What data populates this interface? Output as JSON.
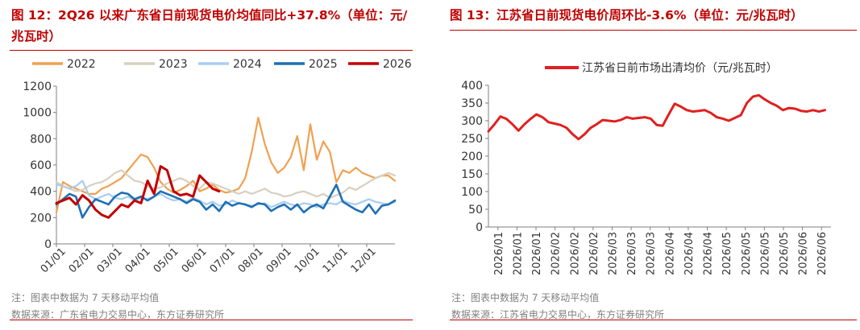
{
  "left": {
    "figure_title": "图 12：2Q26 以来广东省日前现货电价均值同比+37.8%（单位：元/兆瓦时）",
    "note": "注：图表中数据为 7 天移动平均值",
    "source": "数据来源：广东省电力交易中心，东方证券研究所"
  },
  "right": {
    "figure_title": "图 13：江苏省日前现货电价周环比-3.6%（单位：元/兆瓦时）",
    "note": "注：图表中数据为 7 天移动平均值",
    "source": "数据来源：江苏省电力交易中心，东方证券研究所"
  },
  "colors": {
    "title": "#c00000",
    "axis": "#7f7f7f"
  },
  "chart_data": [
    {
      "type": "line",
      "ylim": [
        0,
        1200
      ],
      "yticks": [
        0,
        200,
        400,
        600,
        800,
        1000,
        1200
      ],
      "x_tick_labels": [
        "01/01",
        "02/01",
        "03/01",
        "04/01",
        "05/01",
        "06/01",
        "07/01",
        "08/01",
        "09/01",
        "10/01",
        "11/01",
        "12/01"
      ],
      "legend_position": "top",
      "grid": false,
      "series": [
        {
          "name": "2022",
          "color": "#f0a050",
          "width": 2.2,
          "x": [
            1,
            8,
            15,
            22,
            29,
            36,
            43,
            50,
            57,
            64,
            71,
            78,
            85,
            92,
            99,
            106,
            113,
            120,
            127,
            134,
            141,
            148,
            155,
            162,
            169,
            176,
            183,
            190,
            197,
            204,
            211,
            218,
            225,
            232,
            239,
            246,
            253,
            260,
            267,
            274,
            281,
            288,
            295,
            302,
            309,
            316,
            323,
            330,
            337,
            344,
            351,
            358,
            365
          ],
          "y": [
            240,
            470,
            440,
            420,
            400,
            380,
            380,
            420,
            440,
            470,
            500,
            560,
            620,
            680,
            660,
            580,
            470,
            420,
            390,
            410,
            440,
            480,
            400,
            420,
            450,
            410,
            390,
            400,
            420,
            500,
            700,
            960,
            760,
            620,
            540,
            580,
            660,
            820,
            560,
            910,
            640,
            780,
            700,
            470,
            560,
            540,
            580,
            540,
            520,
            500,
            520,
            520,
            480
          ]
        },
        {
          "name": "2023",
          "color": "#d8cfc0",
          "width": 2.2,
          "x": [
            1,
            8,
            15,
            22,
            29,
            36,
            43,
            50,
            57,
            64,
            71,
            78,
            85,
            92,
            99,
            106,
            113,
            120,
            127,
            134,
            141,
            148,
            155,
            162,
            169,
            176,
            183,
            190,
            197,
            204,
            211,
            218,
            225,
            232,
            239,
            246,
            253,
            260,
            267,
            274,
            281,
            288,
            295,
            302,
            309,
            316,
            323,
            330,
            337,
            344,
            351,
            358,
            365
          ],
          "y": [
            470,
            440,
            420,
            400,
            410,
            440,
            460,
            470,
            500,
            540,
            560,
            520,
            480,
            470,
            440,
            420,
            430,
            460,
            480,
            500,
            480,
            440,
            420,
            470,
            460,
            440,
            420,
            400,
            380,
            400,
            380,
            400,
            420,
            390,
            380,
            360,
            370,
            390,
            400,
            380,
            360,
            380,
            350,
            370,
            390,
            430,
            410,
            440,
            470,
            500,
            520,
            540,
            520
          ]
        },
        {
          "name": "2024",
          "color": "#a8cdf0",
          "width": 2.2,
          "x": [
            1,
            8,
            15,
            22,
            29,
            36,
            43,
            50,
            57,
            64,
            71,
            78,
            85,
            92,
            99,
            106,
            113,
            120,
            127,
            134,
            141,
            148,
            155,
            162,
            169,
            176,
            183,
            190,
            197,
            204,
            211,
            218,
            225,
            232,
            239,
            246,
            253,
            260,
            267,
            274,
            281,
            288,
            295,
            302,
            309,
            316,
            323,
            330,
            337,
            344,
            351,
            358,
            365
          ],
          "y": [
            450,
            440,
            420,
            440,
            480,
            370,
            340,
            360,
            380,
            350,
            340,
            360,
            330,
            350,
            340,
            360,
            380,
            350,
            330,
            340,
            320,
            350,
            330,
            300,
            320,
            290,
            300,
            330,
            310,
            300,
            290,
            300,
            310,
            280,
            300,
            320,
            300,
            290,
            310,
            300,
            280,
            300,
            310,
            300,
            330,
            310,
            300,
            320,
            340,
            320,
            310,
            300,
            320
          ]
        },
        {
          "name": "2025",
          "color": "#1f6fb4",
          "width": 2.6,
          "x": [
            1,
            8,
            15,
            22,
            29,
            36,
            43,
            50,
            57,
            64,
            71,
            78,
            85,
            92,
            99,
            106,
            113,
            120,
            127,
            134,
            141,
            148,
            155,
            162,
            169,
            176,
            183,
            190,
            197,
            204,
            211,
            218,
            225,
            232,
            239,
            246,
            253,
            260,
            267,
            274,
            281,
            288,
            295,
            302,
            309,
            316,
            323,
            330,
            337,
            344,
            351,
            358,
            365
          ],
          "y": [
            300,
            340,
            380,
            360,
            200,
            280,
            340,
            320,
            300,
            360,
            390,
            380,
            340,
            360,
            330,
            360,
            400,
            380,
            360,
            340,
            310,
            340,
            320,
            260,
            300,
            250,
            320,
            290,
            310,
            300,
            280,
            310,
            300,
            250,
            280,
            300,
            260,
            300,
            240,
            280,
            300,
            270,
            360,
            450,
            320,
            290,
            260,
            240,
            300,
            230,
            290,
            300,
            330
          ]
        },
        {
          "name": "2026",
          "color": "#c00000",
          "width": 3,
          "x": [
            1,
            8,
            15,
            22,
            29,
            36,
            43,
            50,
            57,
            64,
            71,
            78,
            85,
            92,
            99,
            106,
            113,
            120,
            127,
            134,
            141,
            148,
            155,
            162,
            169,
            176
          ],
          "y": [
            310,
            330,
            350,
            300,
            370,
            330,
            260,
            220,
            200,
            250,
            300,
            280,
            330,
            310,
            480,
            380,
            590,
            560,
            400,
            370,
            380,
            360,
            520,
            470,
            420,
            400
          ]
        }
      ]
    },
    {
      "type": "line",
      "ylim": [
        0,
        400
      ],
      "yticks": [
        0,
        50,
        100,
        150,
        200,
        250,
        300,
        350,
        400
      ],
      "x_tick_labels": [
        "2026/01",
        "2026/01",
        "2026/01",
        "2026/02",
        "2026/02",
        "2026/02",
        "2026/03",
        "2026/03",
        "2026/03",
        "2026/04",
        "2026/04",
        "2026/04",
        "2026/05",
        "2026/05",
        "2026/05",
        "2026/05",
        "2026/06",
        "2026/06"
      ],
      "legend_position": "top",
      "grid": false,
      "series": [
        {
          "name": "江苏省日前市场出清均价（元/兆瓦时）",
          "color": "#e02020",
          "width": 3,
          "x": [
            0,
            3,
            6,
            9,
            12,
            15,
            18,
            21,
            24,
            27,
            30,
            33,
            36,
            39,
            42,
            45,
            48,
            51,
            54,
            57,
            60,
            63,
            66,
            69,
            72,
            75,
            78,
            81,
            84,
            87,
            90,
            93,
            96,
            99,
            102,
            105,
            108,
            111,
            114,
            117,
            120,
            123,
            126,
            129,
            132,
            135,
            138,
            141,
            144,
            147,
            150,
            153,
            156,
            159,
            162,
            165,
            168
          ],
          "y": [
            270,
            290,
            312,
            305,
            290,
            272,
            290,
            305,
            318,
            310,
            296,
            292,
            288,
            280,
            262,
            248,
            262,
            280,
            290,
            302,
            300,
            298,
            302,
            310,
            306,
            308,
            310,
            306,
            288,
            286,
            318,
            348,
            340,
            330,
            326,
            328,
            330,
            322,
            310,
            306,
            300,
            308,
            316,
            350,
            368,
            372,
            360,
            350,
            342,
            330,
            336,
            334,
            328,
            326,
            330,
            326,
            330
          ]
        }
      ]
    }
  ]
}
